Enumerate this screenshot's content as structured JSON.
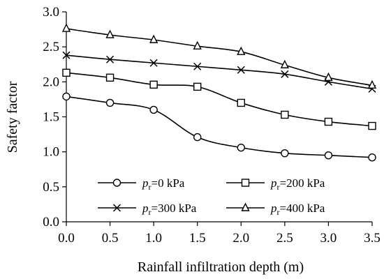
{
  "chart_data": {
    "type": "line",
    "x": [
      0.0,
      0.5,
      1.0,
      1.5,
      2.0,
      2.5,
      3.0,
      3.5
    ],
    "xlabel": "Rainfall infiltration depth (m)",
    "ylabel": "Safety factor",
    "xlim": [
      0.0,
      3.5
    ],
    "ylim": [
      0.0,
      3.0
    ],
    "xticks": [
      "0.0",
      "0.5",
      "1.0",
      "1.5",
      "2.0",
      "2.5",
      "3.0",
      "3.5"
    ],
    "yticks": [
      "0.0",
      "0.5",
      "1.0",
      "1.5",
      "2.0",
      "2.5",
      "3.0"
    ],
    "grid": false,
    "legend_placement": "bottom-inside",
    "series": [
      {
        "name": "pr=0 kPa",
        "label_italic": "p",
        "label_sub": "r",
        "label_rest": "=0 kPa",
        "marker": "circle",
        "color": "#000000",
        "values": [
          1.79,
          1.7,
          1.6,
          1.21,
          1.06,
          0.98,
          0.95,
          0.92
        ]
      },
      {
        "name": "pr=200 kPa",
        "label_italic": "p",
        "label_sub": "r",
        "label_rest": "=200 kPa",
        "marker": "square",
        "color": "#000000",
        "values": [
          2.13,
          2.06,
          1.96,
          1.93,
          1.7,
          1.53,
          1.43,
          1.37
        ]
      },
      {
        "name": "pr=300 kPa",
        "label_italic": "p",
        "label_sub": "r",
        "label_rest": "=300 kPa",
        "marker": "x",
        "color": "#000000",
        "values": [
          2.38,
          2.32,
          2.27,
          2.22,
          2.17,
          2.11,
          2.0,
          1.9
        ]
      },
      {
        "name": "pr=400 kPa",
        "label_italic": "p",
        "label_sub": "r",
        "label_rest": "=400 kPa",
        "marker": "triangle",
        "color": "#000000",
        "values": [
          2.76,
          2.67,
          2.6,
          2.51,
          2.43,
          2.24,
          2.06,
          1.95
        ]
      }
    ]
  }
}
